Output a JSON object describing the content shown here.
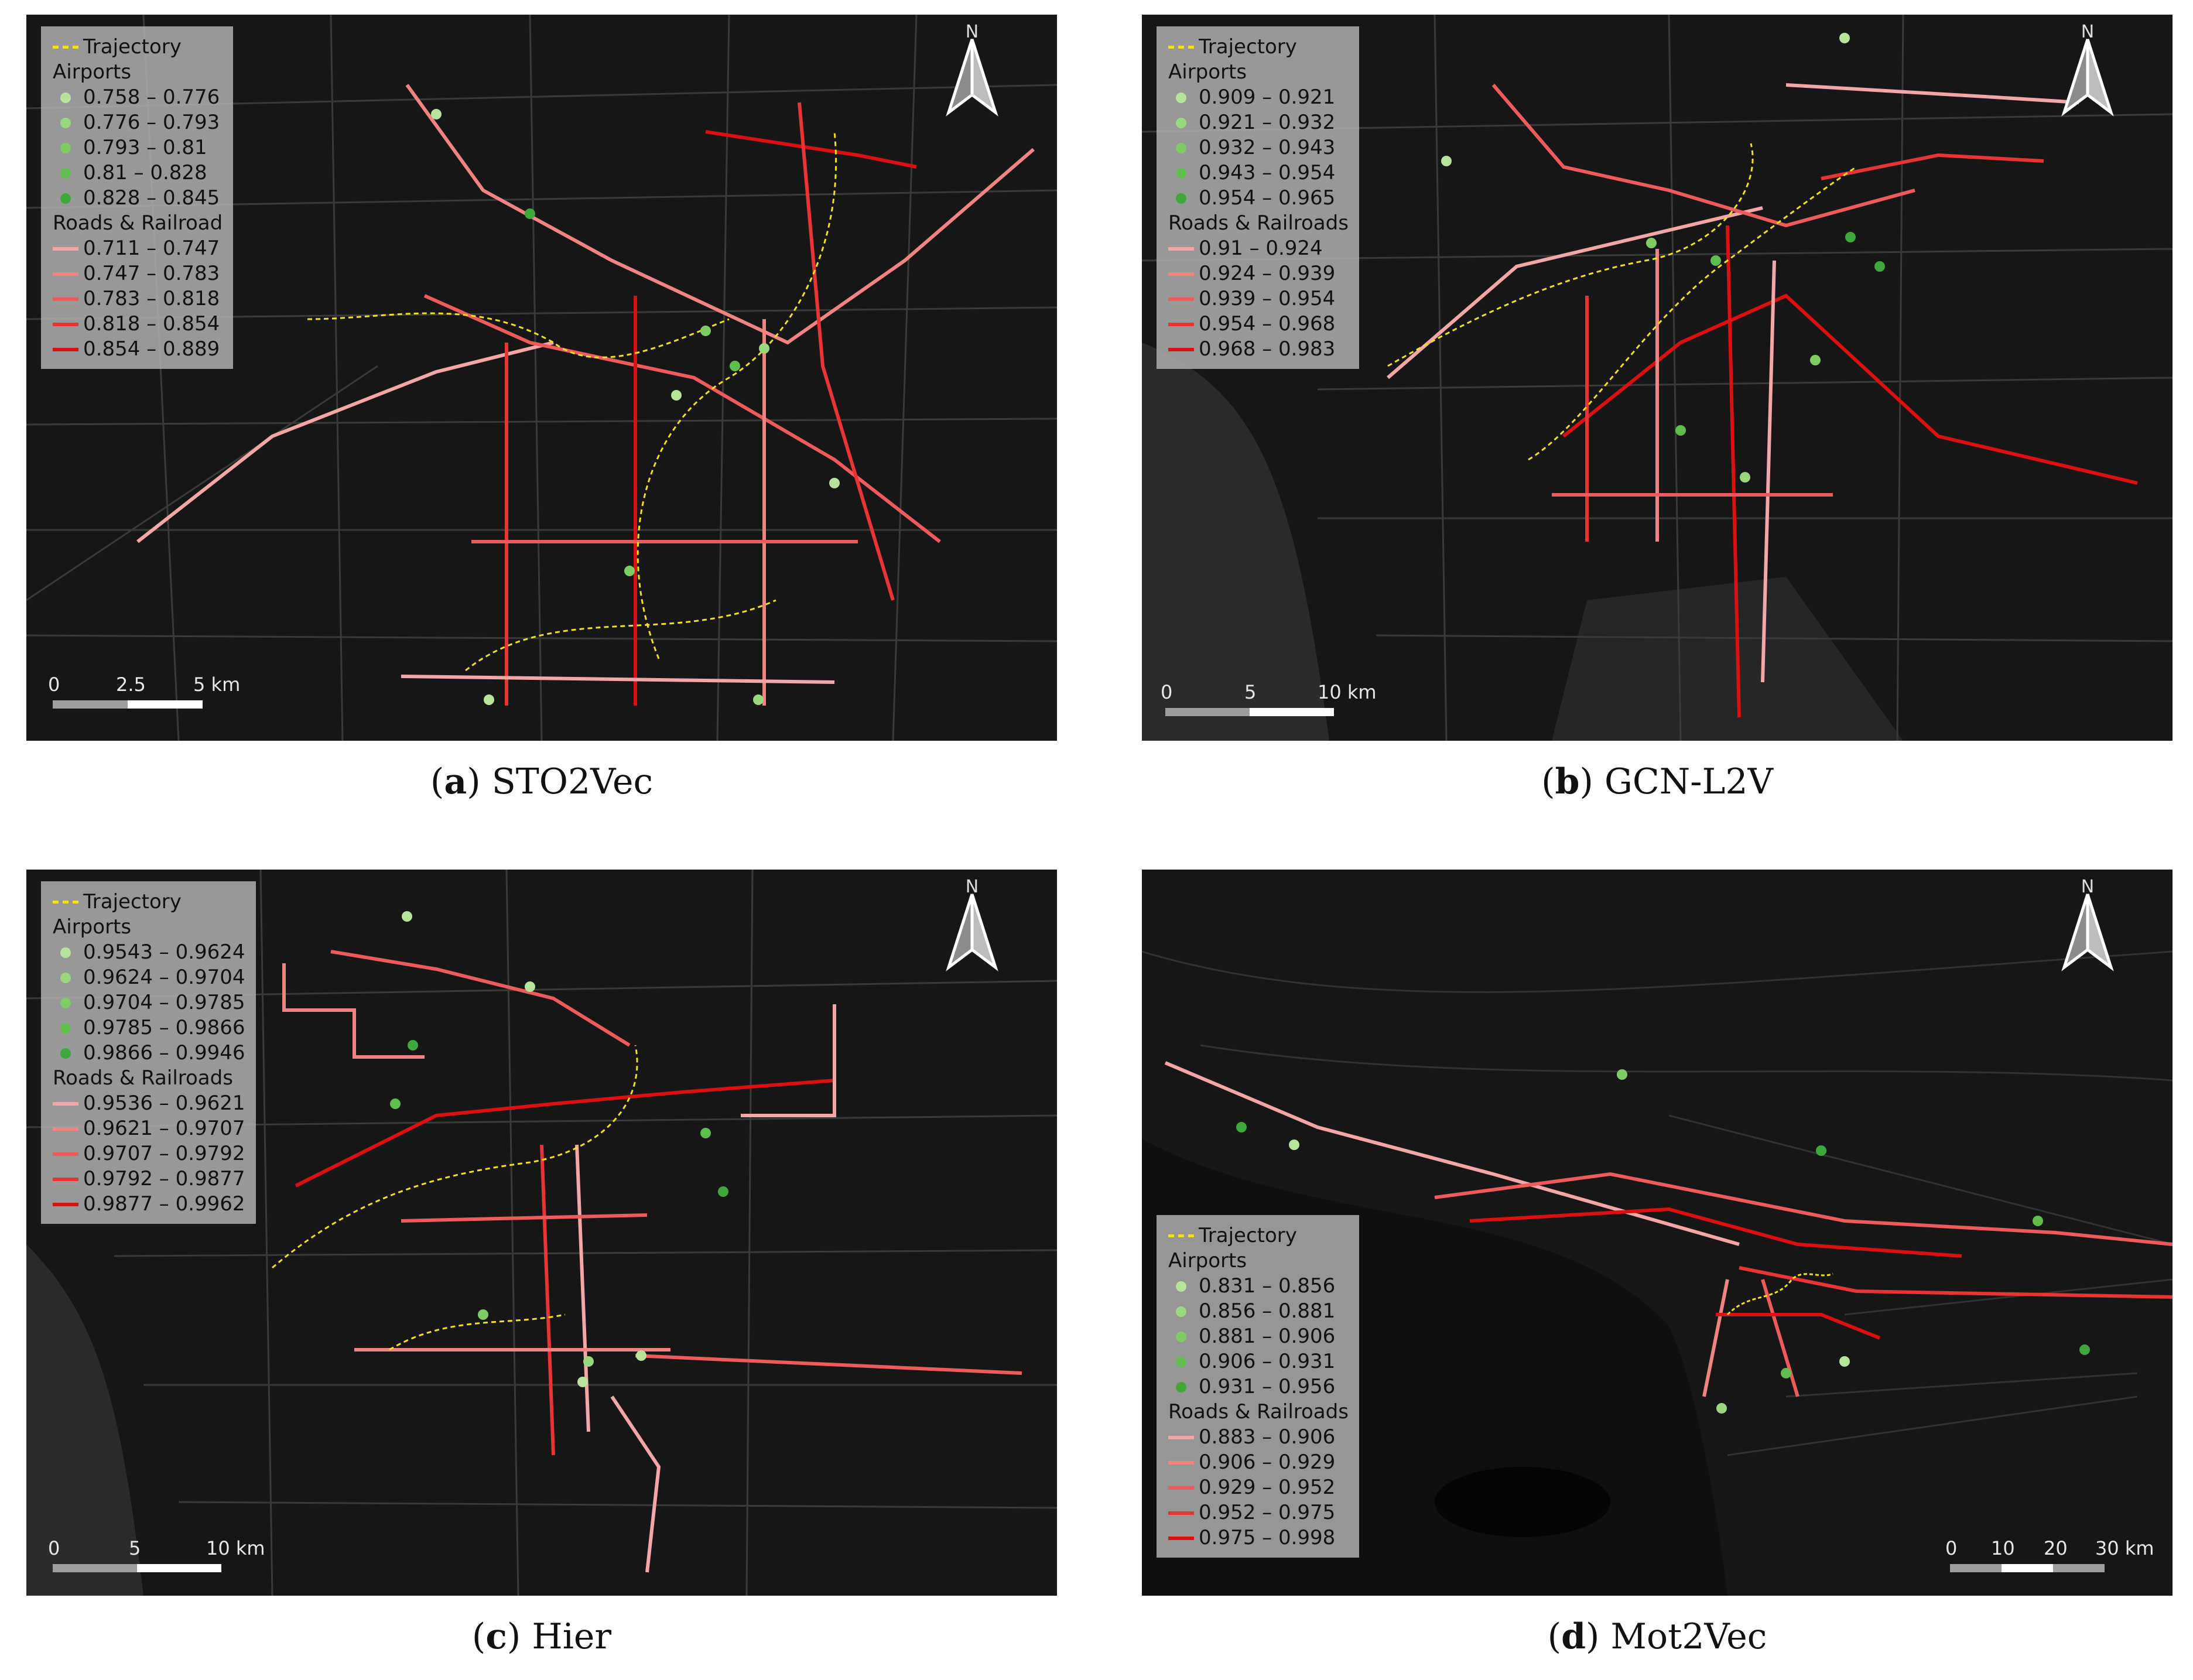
{
  "panels": [
    {
      "caption_letter": "a",
      "caption_method": "STO2Vec",
      "legend": {
        "trajectory_label": "Trajectory",
        "airports_title": "Airports",
        "airports": [
          "0.758 – 0.776",
          "0.776 – 0.793",
          "0.793 – 0.81",
          "0.81 – 0.828",
          "0.828 – 0.845"
        ],
        "roads_title": "Roads & Railroad",
        "roads": [
          "0.711 – 0.747",
          "0.747 – 0.783",
          "0.783 – 0.818",
          "0.818 – 0.854",
          "0.854 – 0.889"
        ]
      },
      "north_label": "N",
      "scale": {
        "labels": [
          "0",
          "2.5",
          "5 km"
        ]
      }
    },
    {
      "caption_letter": "b",
      "caption_method": "GCN-L2V",
      "legend": {
        "trajectory_label": "Trajectory",
        "airports_title": "Airports",
        "airports": [
          "0.909 – 0.921",
          "0.921 – 0.932",
          "0.932 – 0.943",
          "0.943 – 0.954",
          "0.954 – 0.965"
        ],
        "roads_title": "Roads & Railroads",
        "roads": [
          "0.91 – 0.924",
          "0.924 – 0.939",
          "0.939 – 0.954",
          "0.954 – 0.968",
          "0.968 – 0.983"
        ]
      },
      "north_label": "N",
      "scale": {
        "labels": [
          "0",
          "5",
          "10 km"
        ]
      }
    },
    {
      "caption_letter": "c",
      "caption_method": "Hier",
      "legend": {
        "trajectory_label": "Trajectory",
        "airports_title": "Airports",
        "airports": [
          "0.9543 – 0.9624",
          "0.9624 – 0.9704",
          "0.9704 – 0.9785",
          "0.9785 – 0.9866",
          "0.9866 – 0.9946"
        ],
        "roads_title": "Roads & Railroads",
        "roads": [
          "0.9536 – 0.9621",
          "0.9621 – 0.9707",
          "0.9707 – 0.9792",
          "0.9792 – 0.9877",
          "0.9877 – 0.9962"
        ]
      },
      "north_label": "N",
      "scale": {
        "labels": [
          "0",
          "5",
          "10 km"
        ]
      }
    },
    {
      "caption_letter": "d",
      "caption_method": "Mot2Vec",
      "legend": {
        "trajectory_label": "Trajectory",
        "airports_title": "Airports",
        "airports": [
          "0.831 – 0.856",
          "0.856 – 0.881",
          "0.881 – 0.906",
          "0.906 – 0.931",
          "0.931 – 0.956"
        ],
        "roads_title": "Roads & Railroads",
        "roads": [
          "0.883 – 0.906",
          "0.906 – 0.929",
          "0.929 – 0.952",
          "0.952 – 0.975",
          "0.975 – 0.998"
        ]
      },
      "north_label": "N",
      "scale": {
        "labels": [
          "0",
          "10",
          "20",
          "30 km"
        ]
      }
    }
  ],
  "colors": {
    "map_background": "#161616",
    "street_grid": "#3a3a3a",
    "trajectory": "#f2e21a",
    "airport_ramp": [
      "#b7e39a",
      "#9bd77f",
      "#7fcb64",
      "#5fbd4c",
      "#3ea83a"
    ],
    "road_ramp": [
      "#f4a6a6",
      "#f28383",
      "#ef5a5a",
      "#e83434",
      "#dc1010"
    ]
  }
}
